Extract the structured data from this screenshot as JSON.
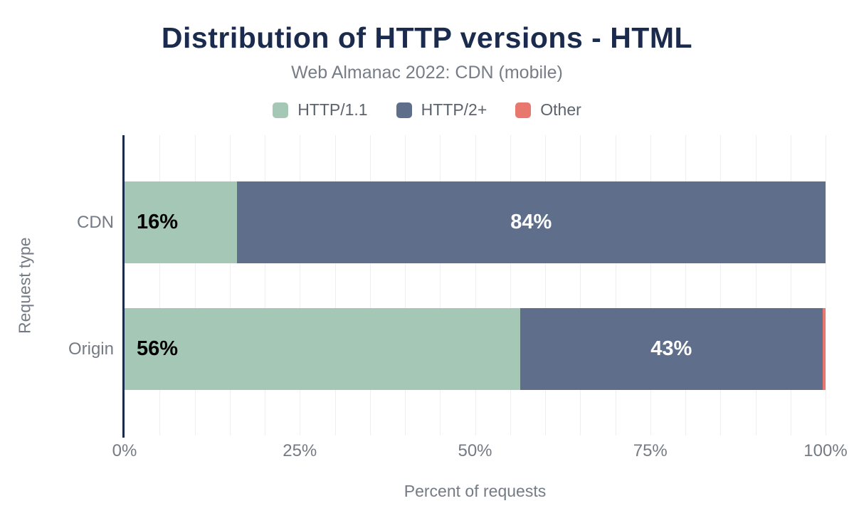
{
  "chart_data": {
    "type": "bar",
    "orientation": "horizontal",
    "stacked": true,
    "title": "Distribution of HTTP versions - HTML",
    "subtitle": "Web Almanac 2022: CDN (mobile)",
    "categories": [
      "CDN",
      "Origin"
    ],
    "series": [
      {
        "name": "HTTP/1.1",
        "color": "#a4c8b5",
        "label_color": "#000000",
        "values": [
          16,
          56.4
        ],
        "labels": [
          "16%",
          "56%"
        ]
      },
      {
        "name": "HTTP/2+",
        "color": "#5e6e8b",
        "label_color": "#ffffff",
        "values": [
          84,
          43.2
        ],
        "labels": [
          "84%",
          "43%"
        ]
      },
      {
        "name": "Other",
        "color": "#e8786e",
        "label_color": "#ffffff",
        "values": [
          0,
          0.4
        ],
        "labels": [
          "",
          ""
        ]
      }
    ],
    "xlabel": "Percent of requests",
    "ylabel": "Request type",
    "x_ticks": [
      {
        "label": "0%",
        "value": 0
      },
      {
        "label": "25%",
        "value": 25
      },
      {
        "label": "50%",
        "value": 50
      },
      {
        "label": "75%",
        "value": 75
      },
      {
        "label": "100%",
        "value": 100
      }
    ],
    "xlim": [
      0,
      100
    ],
    "grid_step": 5,
    "legend_position": "top",
    "colors": {
      "title": "#1b2b4d",
      "subtitle": "#767d87",
      "axis_text": "#747b85",
      "axis_line": "#1b2b4d",
      "gridline": "#efeff2"
    }
  }
}
